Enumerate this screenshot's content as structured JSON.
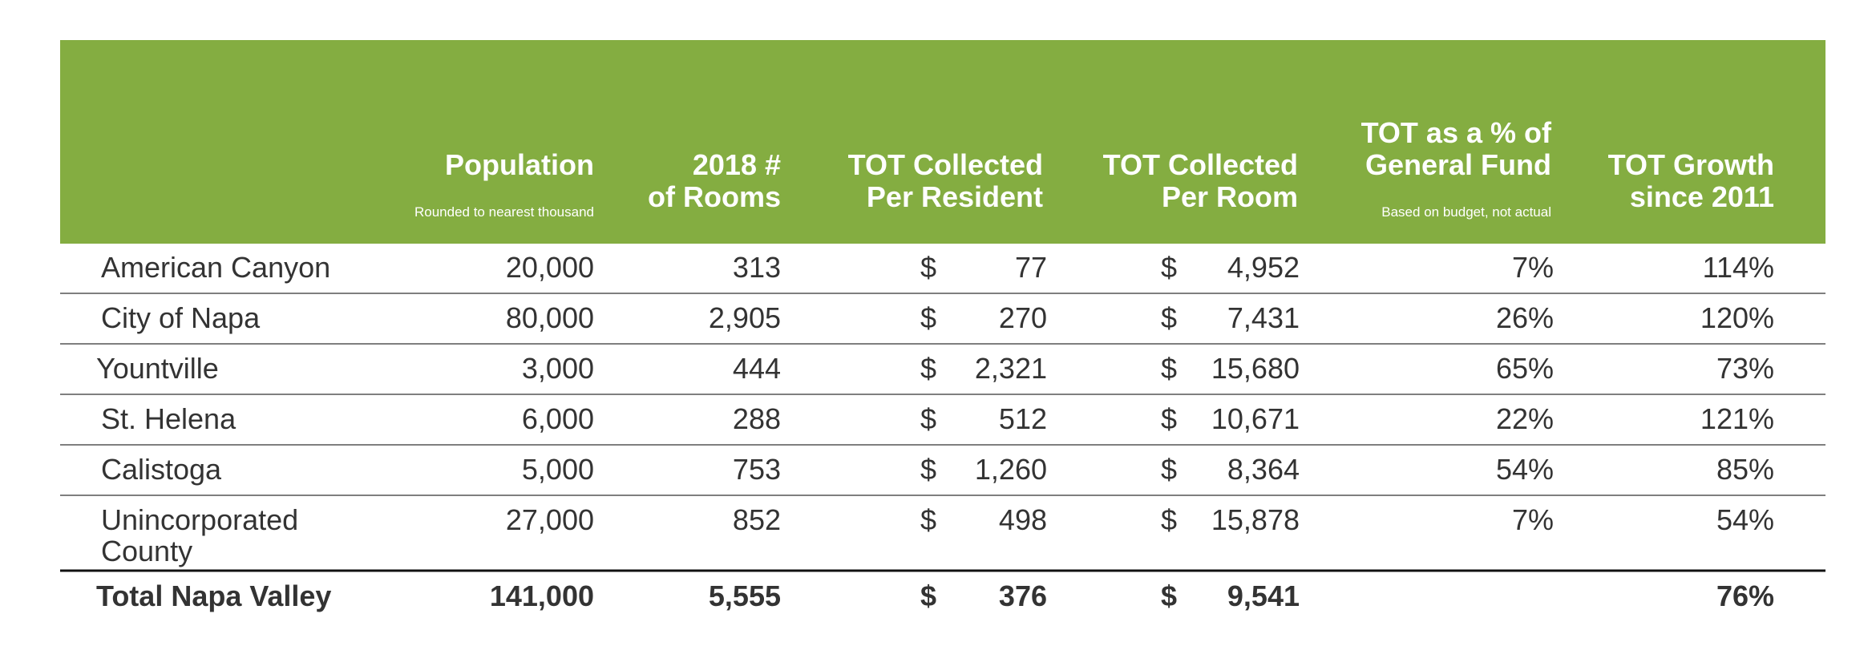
{
  "table": {
    "columns": [
      {
        "title_lines": [
          "Population"
        ],
        "subtitle": "Rounded to nearest thousand"
      },
      {
        "title_lines": [
          "2018 #",
          "of Rooms"
        ]
      },
      {
        "title_lines": [
          "TOT Collected",
          "Per Resident"
        ]
      },
      {
        "title_lines": [
          "TOT Collected",
          "Per Room"
        ]
      },
      {
        "title_lines": [
          "TOT as a % of",
          "General Fund"
        ],
        "subtitle": "Based on budget, not actual"
      },
      {
        "title_lines": [
          "TOT Growth",
          "since 2011"
        ]
      }
    ],
    "rows": [
      {
        "name": [
          "American Canyon"
        ],
        "cells": [
          "20,000",
          "313",
          "$",
          "77",
          "$",
          "4,952",
          "7%",
          "114%"
        ]
      },
      {
        "name": [
          "City of Napa"
        ],
        "cells": [
          "80,000",
          "2,905",
          "$",
          "270",
          "$",
          "7,431",
          "26%",
          "120%"
        ]
      },
      {
        "name": [
          "Yountville"
        ],
        "cells": [
          "3,000",
          "444",
          "$",
          "2,321",
          "$",
          "15,680",
          "65%",
          "73%"
        ]
      },
      {
        "name": [
          "St. Helena"
        ],
        "cells": [
          "6,000",
          "288",
          "$",
          "512",
          "$",
          "10,671",
          "22%",
          "121%"
        ]
      },
      {
        "name": [
          "Calistoga"
        ],
        "cells": [
          "5,000",
          "753",
          "$",
          "1,260",
          "$",
          "8,364",
          "54%",
          "85%"
        ]
      },
      {
        "name": [
          "Unincorporated",
          "County"
        ],
        "cells": [
          "27,000",
          "852",
          "$",
          "498",
          "$",
          "15,878",
          "7%",
          "54%"
        ]
      }
    ],
    "total": {
      "name": [
        "Total Napa Valley"
      ],
      "cells": [
        "141,000",
        "5,555",
        "$",
        "376",
        "$",
        "9,541",
        null,
        "76%"
      ]
    }
  }
}
